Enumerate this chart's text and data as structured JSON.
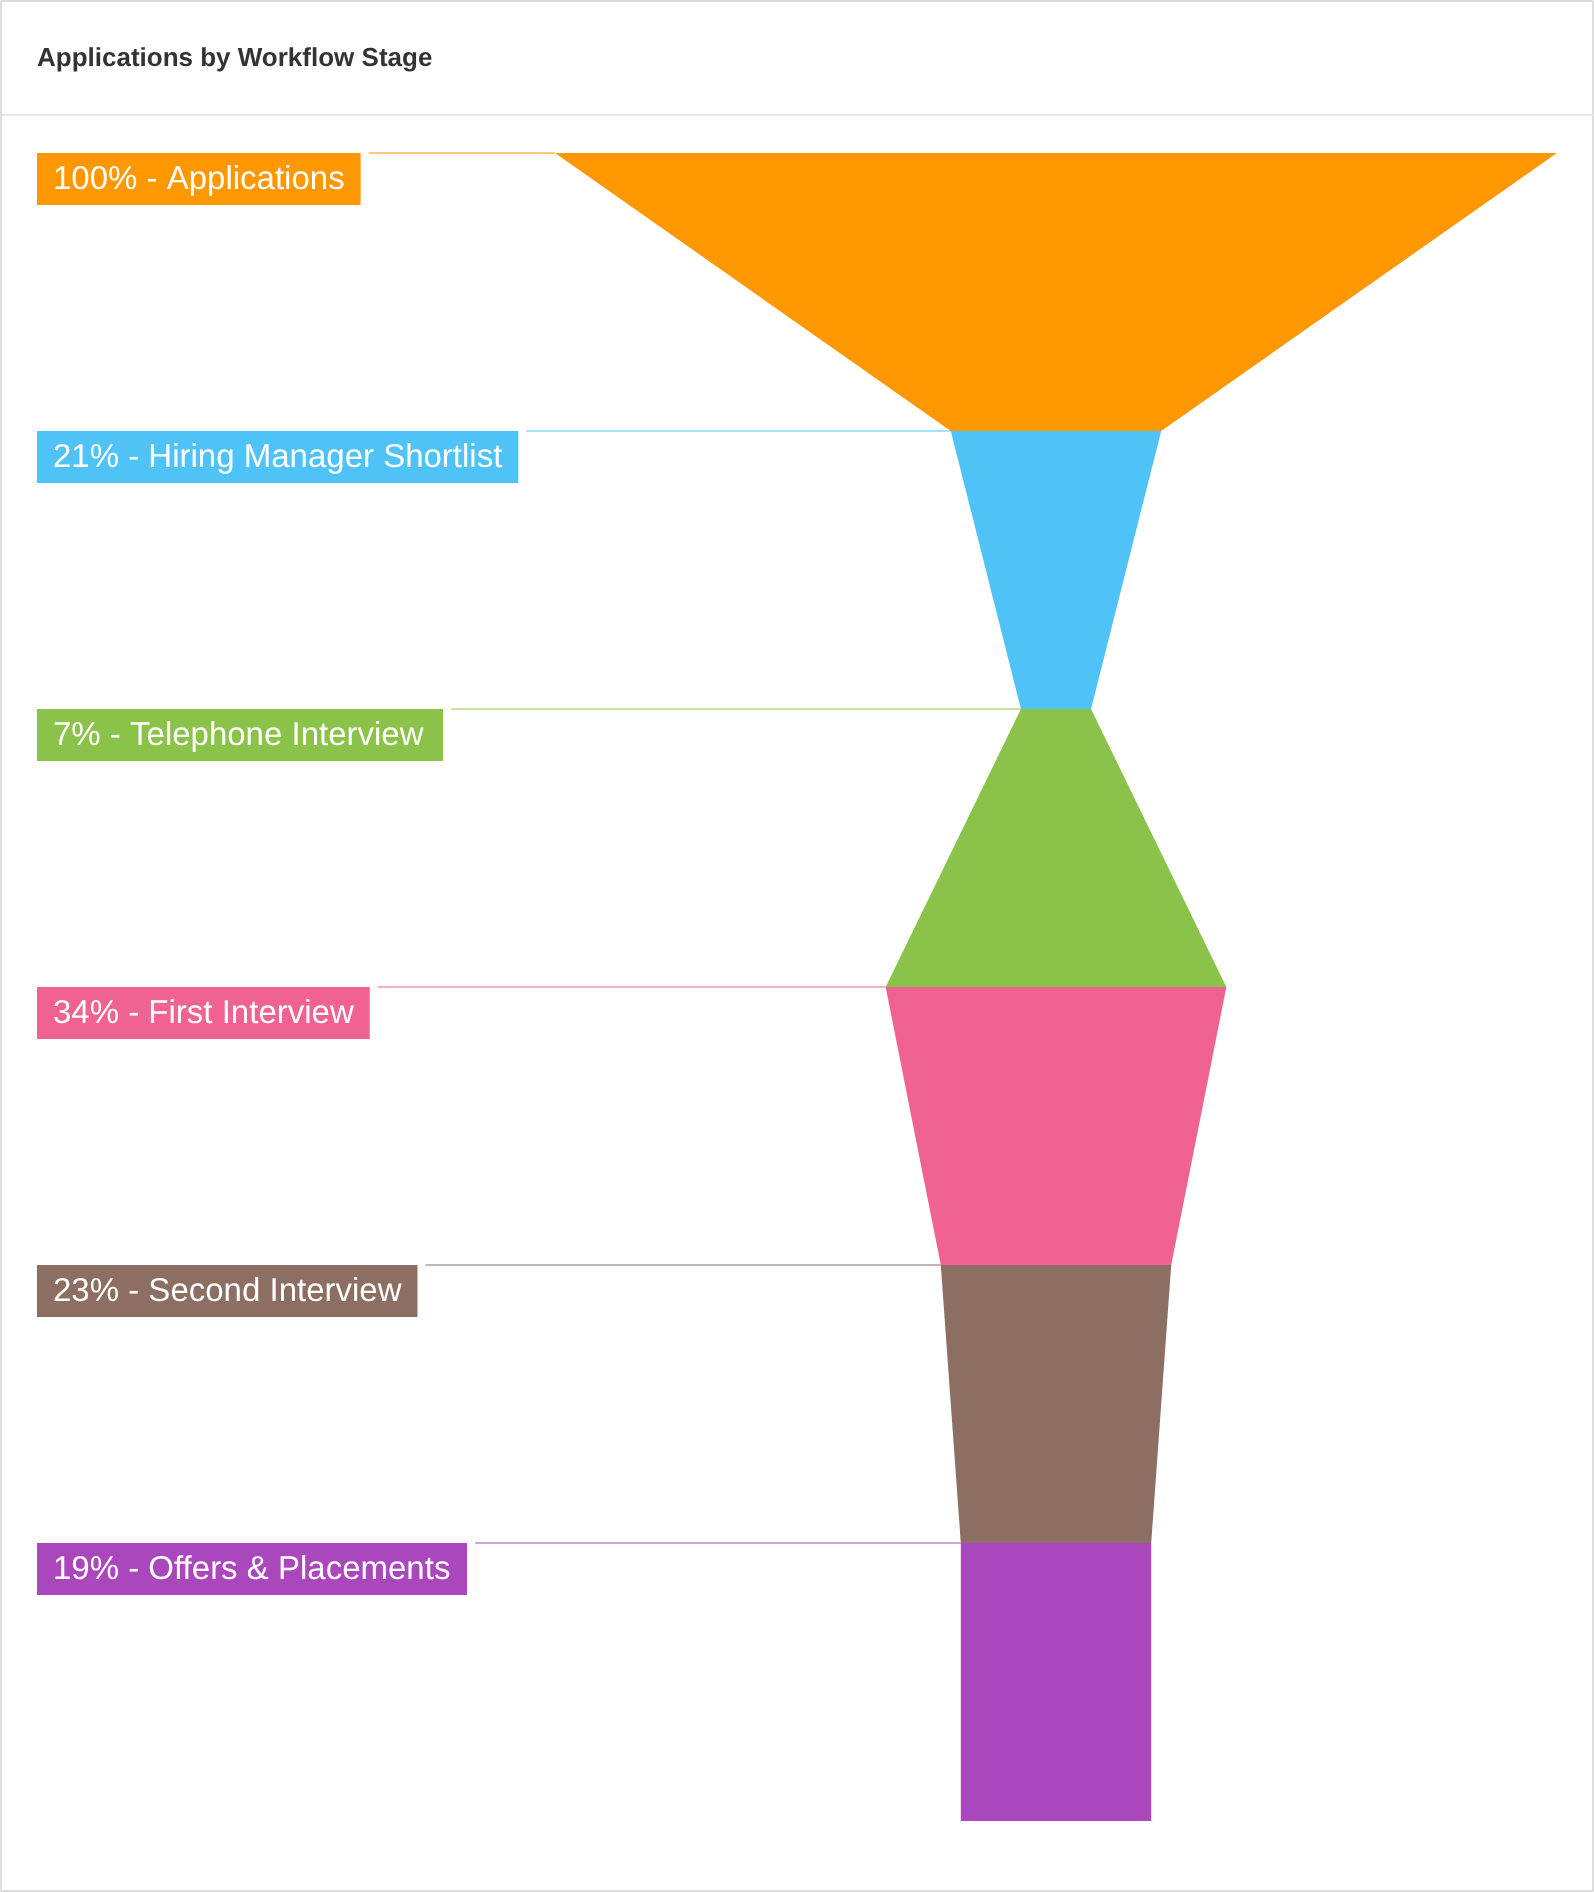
{
  "chart_data": {
    "type": "other",
    "title": "Applications by Workflow Stage",
    "categories": [
      "Applications",
      "Hiring Manager Shortlist",
      "Telephone Interview",
      "First Interview",
      "Second Interview",
      "Offers & Placements"
    ],
    "values": [
      100,
      21,
      7,
      34,
      23,
      19
    ],
    "value_labels": [
      "100% -",
      "21% -",
      "7% -",
      "34% -",
      "23% -",
      "19% -"
    ],
    "colors": [
      "#ff9800",
      "#4fc3f7",
      "#8bc34a",
      "#f06292",
      "#8d6e63",
      "#ab47bc"
    ]
  }
}
